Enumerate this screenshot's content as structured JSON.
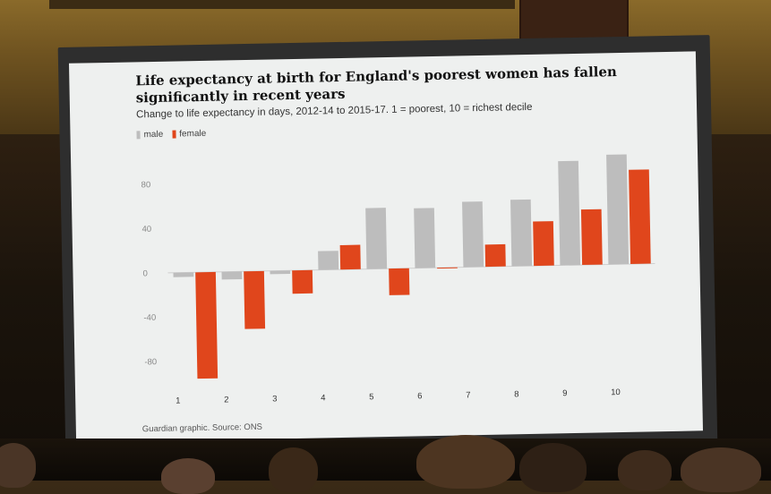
{
  "chart_data": {
    "type": "bar",
    "title": "Life expectancy at birth for England's poorest women has fallen significantly in recent years",
    "subtitle": "Change to life expectancy in days, 2012-14 to 2015-17. 1 = poorest, 10 = richest decile",
    "categories": [
      "1",
      "2",
      "3",
      "4",
      "5",
      "6",
      "7",
      "8",
      "9",
      "10"
    ],
    "series": [
      {
        "name": "male",
        "values": [
          -4,
          -7,
          -3,
          17,
          55,
          54,
          59,
          60,
          94,
          99
        ],
        "color": "#bdbdbd"
      },
      {
        "name": "female",
        "values": [
          -96,
          -52,
          -21,
          22,
          -24,
          0,
          20,
          40,
          50,
          85
        ],
        "color": "#e0461c"
      }
    ],
    "y_ticks": [
      80,
      40,
      0,
      -40,
      -80
    ],
    "ylim": [
      -100,
      110
    ],
    "grid": false,
    "legend_position": "top-left",
    "source": "Guardian graphic. Source: ONS"
  }
}
